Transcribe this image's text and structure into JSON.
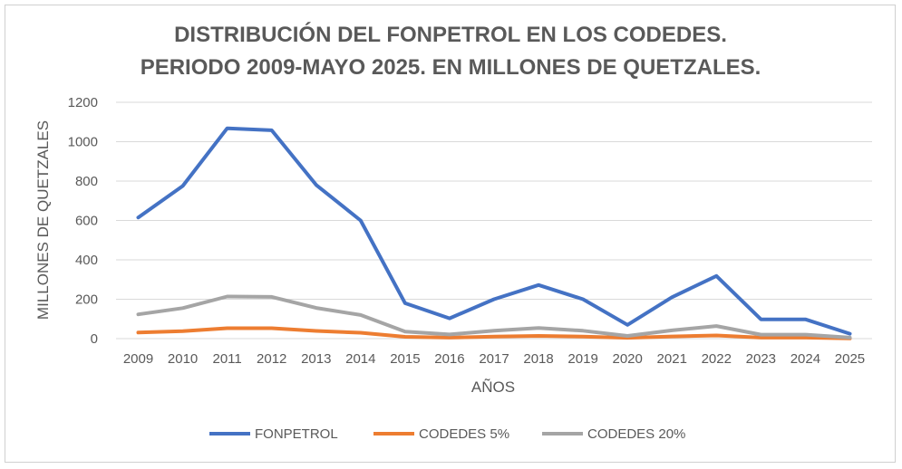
{
  "chart_data": {
    "type": "line",
    "title_line1": "DISTRIBUCIÓN DEL FONPETROL EN LOS CODEDES.",
    "title_line2": "PERIODO 2009-MAYO 2025. EN MILLONES DE QUETZALES.",
    "xlabel": "AÑOS",
    "ylabel": "MILLONES DE QUETZALES",
    "ylim": [
      0,
      1200
    ],
    "yticks": [
      "0",
      "200",
      "400",
      "600",
      "800",
      "1000",
      "1200"
    ],
    "categories": [
      "2009",
      "2010",
      "2011",
      "2012",
      "2013",
      "2014",
      "2015",
      "2016",
      "2017",
      "2018",
      "2019",
      "2020",
      "2021",
      "2022",
      "2023",
      "2024",
      "2025"
    ],
    "grid": true,
    "legend_position": "bottom",
    "series": [
      {
        "name": "FONPETROL",
        "color": "#4472C4",
        "values": [
          615,
          775,
          1068,
          1058,
          780,
          600,
          180,
          103,
          200,
          272,
          200,
          70,
          210,
          318,
          98,
          98,
          25
        ]
      },
      {
        "name": "CODEDES 5%",
        "color": "#ED7D31",
        "values": [
          31,
          38,
          53,
          53,
          39,
          30,
          9,
          5,
          10,
          14,
          10,
          4,
          11,
          16,
          5,
          5,
          1
        ]
      },
      {
        "name": "CODEDES 20%",
        "color": "#A5A5A5",
        "values": [
          123,
          155,
          214,
          212,
          156,
          120,
          36,
          21,
          40,
          54,
          40,
          14,
          42,
          64,
          20,
          20,
          5
        ]
      }
    ]
  }
}
